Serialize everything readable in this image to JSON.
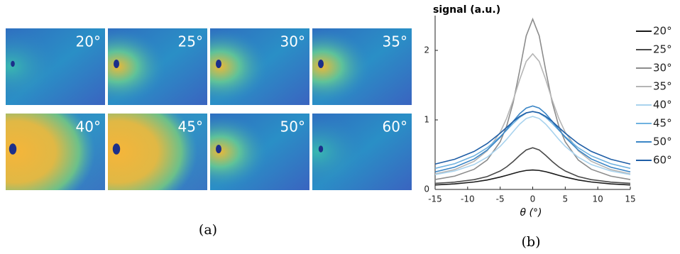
{
  "panel_a": {
    "images": [
      {
        "label": "20°"
      },
      {
        "label": "25°"
      },
      {
        "label": "30°"
      },
      {
        "label": "35°"
      },
      {
        "label": "40°"
      },
      {
        "label": "45°"
      },
      {
        "label": "50°"
      },
      {
        "label": "60°"
      }
    ],
    "caption": "(a)"
  },
  "chart_data": {
    "type": "line",
    "title": "signal (a.u.)",
    "x_label": "θ (°)",
    "caption": "(b)",
    "x": [
      -15,
      -12,
      -9,
      -7,
      -5,
      -4,
      -3,
      -2,
      -1,
      0,
      1,
      2,
      3,
      4,
      5,
      7,
      9,
      12,
      15
    ],
    "xlim": [
      -15,
      15
    ],
    "xticks": [
      -15,
      -10,
      -5,
      0,
      5,
      10,
      15
    ],
    "ylim": [
      0,
      2.5
    ],
    "yticks": [
      0,
      1,
      2
    ],
    "legend": "right",
    "series": [
      {
        "name": "20°",
        "color": "#1a1a1a",
        "values": [
          0.064,
          0.08,
          0.107,
          0.136,
          0.178,
          0.203,
          0.23,
          0.255,
          0.273,
          0.28,
          0.273,
          0.255,
          0.23,
          0.203,
          0.178,
          0.136,
          0.107,
          0.08,
          0.064
        ]
      },
      {
        "name": "25°",
        "color": "#4a4a4a",
        "values": [
          0.087,
          0.105,
          0.141,
          0.185,
          0.265,
          0.325,
          0.402,
          0.49,
          0.568,
          0.6,
          0.568,
          0.49,
          0.402,
          0.325,
          0.265,
          0.185,
          0.141,
          0.105,
          0.087
        ]
      },
      {
        "name": "30°",
        "color": "#8c8c8c",
        "values": [
          0.142,
          0.191,
          0.29,
          0.423,
          0.685,
          0.913,
          1.25,
          1.712,
          2.21,
          2.45,
          2.21,
          1.712,
          1.25,
          0.913,
          0.685,
          0.423,
          0.29,
          0.191,
          0.142
        ]
      },
      {
        "name": "35°",
        "color": "#b5b5b5",
        "values": [
          0.223,
          0.285,
          0.405,
          0.556,
          0.822,
          1.025,
          1.284,
          1.58,
          1.841,
          1.95,
          1.841,
          1.58,
          1.284,
          1.025,
          0.822,
          0.556,
          0.405,
          0.285,
          0.223
        ]
      },
      {
        "name": "40°",
        "color": "#a9d3ee",
        "values": [
          0.213,
          0.265,
          0.358,
          0.463,
          0.62,
          0.721,
          0.832,
          0.939,
          1.02,
          1.05,
          1.02,
          0.939,
          0.832,
          0.721,
          0.62,
          0.463,
          0.358,
          0.265,
          0.213
        ]
      },
      {
        "name": "45°",
        "color": "#6fb2e0",
        "values": [
          0.303,
          0.37,
          0.483,
          0.599,
          0.759,
          0.853,
          0.95,
          1.036,
          1.098,
          1.12,
          1.098,
          1.036,
          0.95,
          0.853,
          0.759,
          0.599,
          0.483,
          0.37,
          0.303
        ]
      },
      {
        "name": "50°",
        "color": "#3b86c6",
        "values": [
          0.252,
          0.32,
          0.438,
          0.566,
          0.749,
          0.862,
          0.98,
          1.09,
          1.17,
          1.2,
          1.17,
          1.09,
          0.98,
          0.862,
          0.749,
          0.566,
          0.438,
          0.32,
          0.252
        ]
      },
      {
        "name": "60°",
        "color": "#1f5ea6",
        "values": [
          0.365,
          0.434,
          0.547,
          0.66,
          0.809,
          0.893,
          0.977,
          1.05,
          1.102,
          1.12,
          1.102,
          1.05,
          0.977,
          0.893,
          0.809,
          0.66,
          0.547,
          0.434,
          0.365
        ]
      }
    ]
  }
}
